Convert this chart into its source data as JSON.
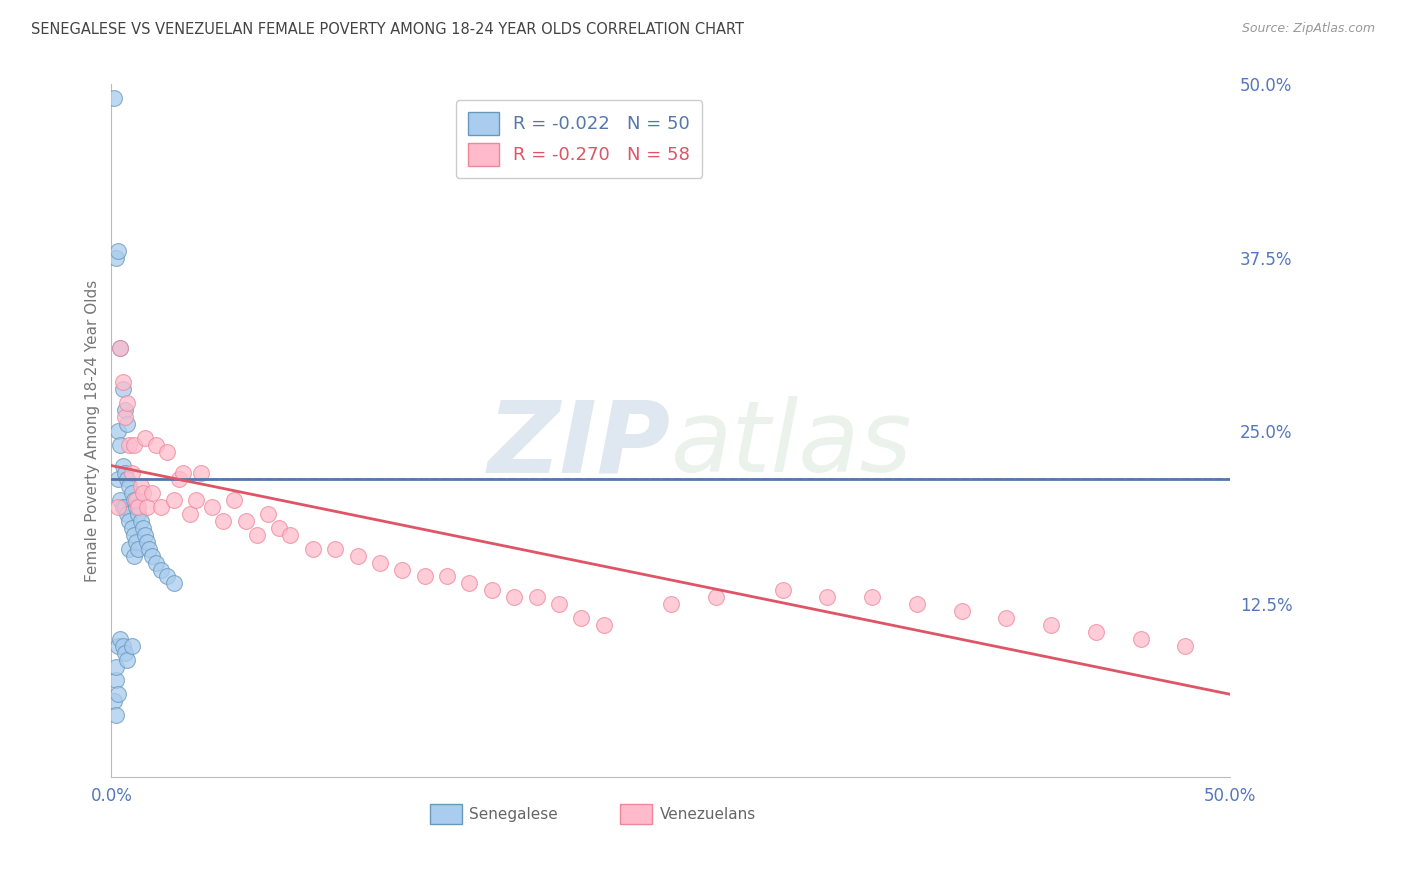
{
  "title": "SENEGALESE VS VENEZUELAN FEMALE POVERTY AMONG 18-24 YEAR OLDS CORRELATION CHART",
  "source": "Source: ZipAtlas.com",
  "ylabel": "Female Poverty Among 18-24 Year Olds",
  "xlim": [
    0,
    0.5
  ],
  "ylim": [
    0,
    0.5
  ],
  "legend_r1": "R = -0.022",
  "legend_n1": "N = 50",
  "legend_r2": "R = -0.270",
  "legend_n2": "N = 58",
  "color_blue_fill": "#AACCEE",
  "color_pink_fill": "#FFBBCC",
  "color_blue_edge": "#6699BB",
  "color_pink_edge": "#EE8899",
  "color_blue_line": "#5577AA",
  "color_pink_line": "#DD5566",
  "color_blue_dashed": "#99BBDD",
  "watermark_zip": "ZIP",
  "watermark_atlas": "atlas",
  "background_color": "#FFFFFF",
  "grid_color": "#CCCCCC",
  "senegalese_x": [
    0.001,
    0.001,
    0.002,
    0.002,
    0.002,
    0.003,
    0.003,
    0.003,
    0.003,
    0.004,
    0.004,
    0.004,
    0.004,
    0.005,
    0.005,
    0.005,
    0.005,
    0.006,
    0.006,
    0.006,
    0.006,
    0.007,
    0.007,
    0.007,
    0.007,
    0.008,
    0.008,
    0.008,
    0.009,
    0.009,
    0.009,
    0.01,
    0.01,
    0.01,
    0.011,
    0.011,
    0.012,
    0.012,
    0.013,
    0.014,
    0.015,
    0.016,
    0.017,
    0.018,
    0.02,
    0.022,
    0.025,
    0.028,
    0.003,
    0.002
  ],
  "senegalese_y": [
    0.49,
    0.055,
    0.375,
    0.07,
    0.08,
    0.38,
    0.25,
    0.215,
    0.095,
    0.31,
    0.24,
    0.2,
    0.1,
    0.28,
    0.225,
    0.195,
    0.095,
    0.265,
    0.22,
    0.195,
    0.09,
    0.255,
    0.215,
    0.19,
    0.085,
    0.21,
    0.185,
    0.165,
    0.205,
    0.18,
    0.095,
    0.2,
    0.175,
    0.16,
    0.195,
    0.17,
    0.19,
    0.165,
    0.185,
    0.18,
    0.175,
    0.17,
    0.165,
    0.16,
    0.155,
    0.15,
    0.145,
    0.14,
    0.06,
    0.045
  ],
  "venezuelan_x": [
    0.003,
    0.004,
    0.005,
    0.006,
    0.007,
    0.008,
    0.009,
    0.01,
    0.011,
    0.012,
    0.013,
    0.014,
    0.015,
    0.016,
    0.018,
    0.02,
    0.022,
    0.025,
    0.028,
    0.03,
    0.032,
    0.035,
    0.038,
    0.04,
    0.045,
    0.05,
    0.055,
    0.06,
    0.065,
    0.07,
    0.075,
    0.08,
    0.09,
    0.1,
    0.11,
    0.12,
    0.13,
    0.14,
    0.15,
    0.16,
    0.17,
    0.18,
    0.19,
    0.2,
    0.21,
    0.22,
    0.25,
    0.27,
    0.3,
    0.32,
    0.34,
    0.36,
    0.38,
    0.4,
    0.42,
    0.44,
    0.46,
    0.48
  ],
  "venezuelan_y": [
    0.195,
    0.31,
    0.285,
    0.26,
    0.27,
    0.24,
    0.22,
    0.24,
    0.2,
    0.195,
    0.21,
    0.205,
    0.245,
    0.195,
    0.205,
    0.24,
    0.195,
    0.235,
    0.2,
    0.215,
    0.22,
    0.19,
    0.2,
    0.22,
    0.195,
    0.185,
    0.2,
    0.185,
    0.175,
    0.19,
    0.18,
    0.175,
    0.165,
    0.165,
    0.16,
    0.155,
    0.15,
    0.145,
    0.145,
    0.14,
    0.135,
    0.13,
    0.13,
    0.125,
    0.115,
    0.11,
    0.125,
    0.13,
    0.135,
    0.13,
    0.13,
    0.125,
    0.12,
    0.115,
    0.11,
    0.105,
    0.1,
    0.095
  ],
  "sen_trendline_x": [
    0.0,
    0.5
  ],
  "sen_trendline_y_start": 0.215,
  "sen_trendline_y_end": 0.215,
  "ven_trendline_x": [
    0.0,
    0.5
  ],
  "ven_trendline_y_start": 0.225,
  "ven_trendline_y_end": 0.06
}
